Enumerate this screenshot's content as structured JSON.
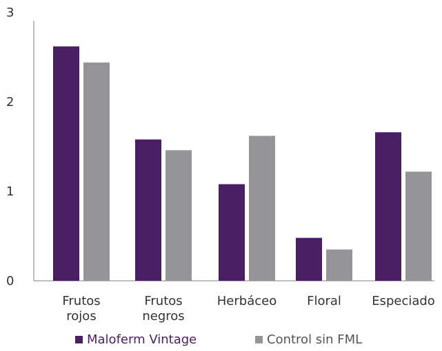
{
  "chart_data": {
    "type": "bar",
    "title": "",
    "xlabel": "",
    "ylabel": "",
    "ylim": [
      0,
      3
    ],
    "yticks": [
      0,
      1,
      2,
      3
    ],
    "grid": false,
    "legend_position": "bottom",
    "categories": [
      [
        "Frutos",
        "rojos"
      ],
      [
        "Frutos",
        "negros"
      ],
      [
        "Herbáceo"
      ],
      [
        "Floral"
      ],
      [
        "Especiado"
      ]
    ],
    "series": [
      {
        "name": "Maloferm Vintage",
        "color": "#4a1e63",
        "values": [
          2.62,
          1.58,
          1.08,
          0.48,
          1.66
        ]
      },
      {
        "name": "Control sin FML",
        "color": "#939598",
        "values": [
          2.44,
          1.46,
          1.62,
          0.35,
          1.22
        ]
      }
    ]
  }
}
